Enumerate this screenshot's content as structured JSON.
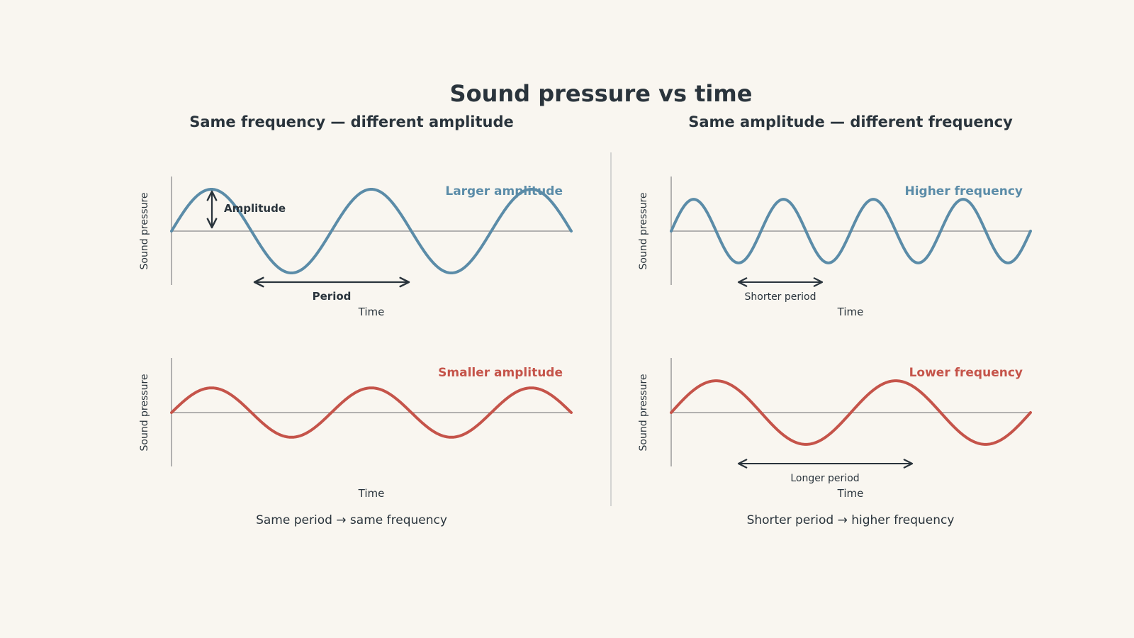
{
  "title": "Sound pressure vs time",
  "colors": {
    "background": "#f9f6f0",
    "text": "#2a343c",
    "blue": "#5b8ca8",
    "red": "#c5544a",
    "axis": "#9a9a9a",
    "divider": "#c8c8c8"
  },
  "columns": [
    {
      "heading": "Same frequency — different amplitude",
      "caption": "Same period → same frequency"
    },
    {
      "heading": "Same amplitude — different frequency",
      "caption": "Shorter period → higher frequency"
    }
  ],
  "panels": [
    {
      "id": "larger-amplitude",
      "label": "Larger amplitude",
      "color": "blue",
      "ylabel": "Sound pressure",
      "xlabel": "Time",
      "amplitude": 1.0,
      "cycles": 2.5,
      "annotations": {
        "amplitude_label": "Amplitude",
        "period_label": "Period"
      }
    },
    {
      "id": "higher-frequency",
      "label": "Higher frequency",
      "color": "blue",
      "ylabel": "Sound pressure",
      "xlabel": "Time",
      "amplitude": 0.76,
      "cycles": 4,
      "annotations": {
        "period_label": "Shorter period"
      }
    },
    {
      "id": "smaller-amplitude",
      "label": "Smaller amplitude",
      "color": "red",
      "ylabel": "Sound pressure",
      "xlabel": "Time",
      "amplitude": 0.59,
      "cycles": 2.5
    },
    {
      "id": "lower-frequency",
      "label": "Lower frequency",
      "color": "red",
      "ylabel": "Sound pressure",
      "xlabel": "Time",
      "amplitude": 0.76,
      "cycles": 2,
      "annotations": {
        "period_label": "Longer period"
      }
    }
  ]
}
